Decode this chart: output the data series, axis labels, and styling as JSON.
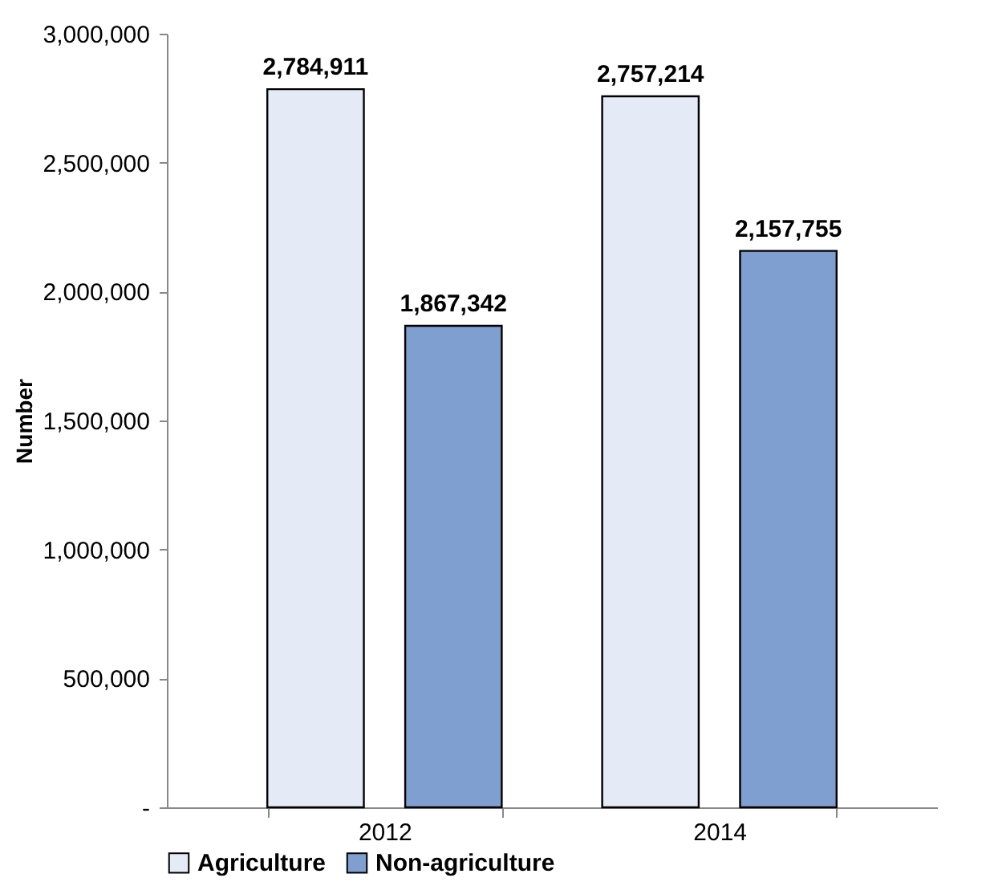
{
  "chart_data": {
    "type": "bar",
    "ylabel": "Number",
    "categories": [
      "2012",
      "2014"
    ],
    "series": [
      {
        "name": "Agriculture",
        "color": "#e4ebf6",
        "values": [
          2784911,
          2757214
        ],
        "value_labels": [
          "2,784,911",
          "2,757,214"
        ]
      },
      {
        "name": "Non-agriculture",
        "color": "#7f9fd0",
        "values": [
          1867342,
          2157755
        ],
        "value_labels": [
          "1,867,342",
          "2,157,755"
        ]
      }
    ],
    "ylim": [
      0,
      3000000
    ],
    "yticks": [
      {
        "value": 0,
        "label": "-"
      },
      {
        "value": 500000,
        "label": "500,000"
      },
      {
        "value": 1000000,
        "label": "1,000,000"
      },
      {
        "value": 1500000,
        "label": "1,500,000"
      },
      {
        "value": 2000000,
        "label": "2,000,000"
      },
      {
        "value": 2500000,
        "label": "2,500,000"
      },
      {
        "value": 3000000,
        "label": "3,000,000"
      }
    ],
    "grid": false,
    "legend": "bottom"
  }
}
